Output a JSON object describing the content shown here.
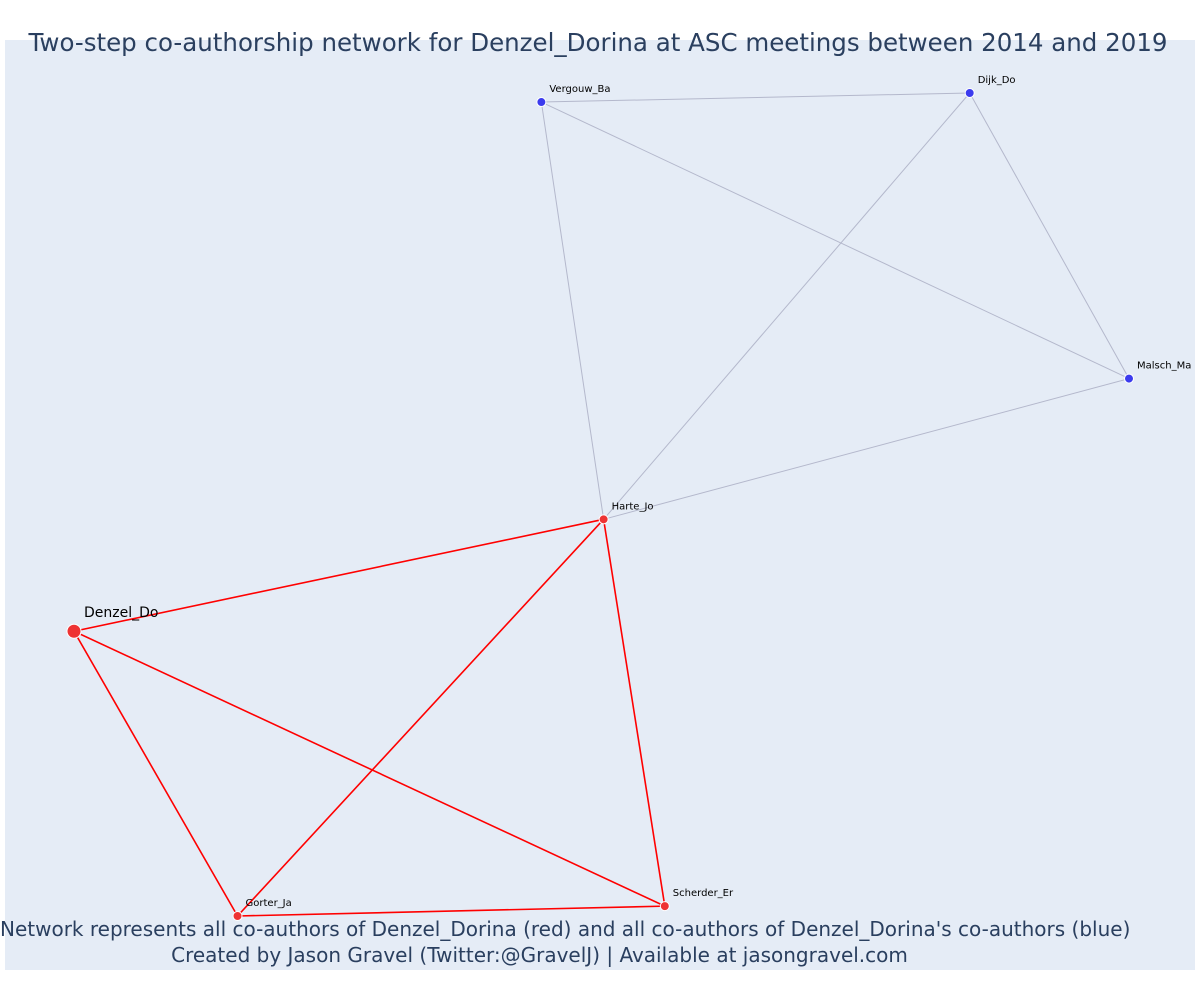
{
  "chart_data": {
    "type": "network",
    "title": "Two-step co-authorship network for Denzel_Dorina at ASC meetings between 2014 and 2019",
    "captions": [
      "Network represents all co-authors of Denzel_Dorina (red) and all co-authors of Denzel_Dorina's co-authors (blue)",
      "Created by Jason Gravel (Twitter:@GravelJ) | Available at jasongravel.com"
    ],
    "colors": {
      "direct": "#ff0000",
      "direct_node": "#ee3333",
      "indirect_edge": "#b4b8cc",
      "indirect_node": "#3b3bee",
      "background": "#e5ecf6"
    },
    "nodes": [
      {
        "id": "Denzel_Do",
        "label": "Denzel_Do",
        "group": "focal",
        "x": 0.0,
        "y": 0.346
      },
      {
        "id": "Harte_Jo",
        "label": "Harte_Jo",
        "group": "direct",
        "x": 0.502,
        "y": 0.482
      },
      {
        "id": "Gorter_Ja",
        "label": "Gorter_Ja",
        "group": "direct",
        "x": 0.155,
        "y": 0.0
      },
      {
        "id": "Scherder_Er",
        "label": "Scherder_Er",
        "group": "direct",
        "x": 0.56,
        "y": 0.012
      },
      {
        "id": "Vergouw_Ba",
        "label": "Vergouw_Ba",
        "group": "indirect",
        "x": 0.443,
        "y": 0.989
      },
      {
        "id": "Dijk_Do",
        "label": "Dijk_Do",
        "group": "indirect",
        "x": 0.849,
        "y": 1.0
      },
      {
        "id": "Malsch_Ma",
        "label": "Malsch_Ma",
        "group": "indirect",
        "x": 1.0,
        "y": 0.653
      }
    ],
    "edges": [
      {
        "source": "Denzel_Do",
        "target": "Harte_Jo",
        "group": "direct"
      },
      {
        "source": "Denzel_Do",
        "target": "Gorter_Ja",
        "group": "direct"
      },
      {
        "source": "Denzel_Do",
        "target": "Scherder_Er",
        "group": "direct"
      },
      {
        "source": "Harte_Jo",
        "target": "Gorter_Ja",
        "group": "direct"
      },
      {
        "source": "Harte_Jo",
        "target": "Scherder_Er",
        "group": "direct"
      },
      {
        "source": "Gorter_Ja",
        "target": "Scherder_Er",
        "group": "direct"
      },
      {
        "source": "Harte_Jo",
        "target": "Vergouw_Ba",
        "group": "indirect"
      },
      {
        "source": "Harte_Jo",
        "target": "Dijk_Do",
        "group": "indirect"
      },
      {
        "source": "Harte_Jo",
        "target": "Malsch_Ma",
        "group": "indirect"
      },
      {
        "source": "Vergouw_Ba",
        "target": "Dijk_Do",
        "group": "indirect"
      },
      {
        "source": "Vergouw_Ba",
        "target": "Malsch_Ma",
        "group": "indirect"
      },
      {
        "source": "Dijk_Do",
        "target": "Malsch_Ma",
        "group": "indirect"
      }
    ]
  }
}
